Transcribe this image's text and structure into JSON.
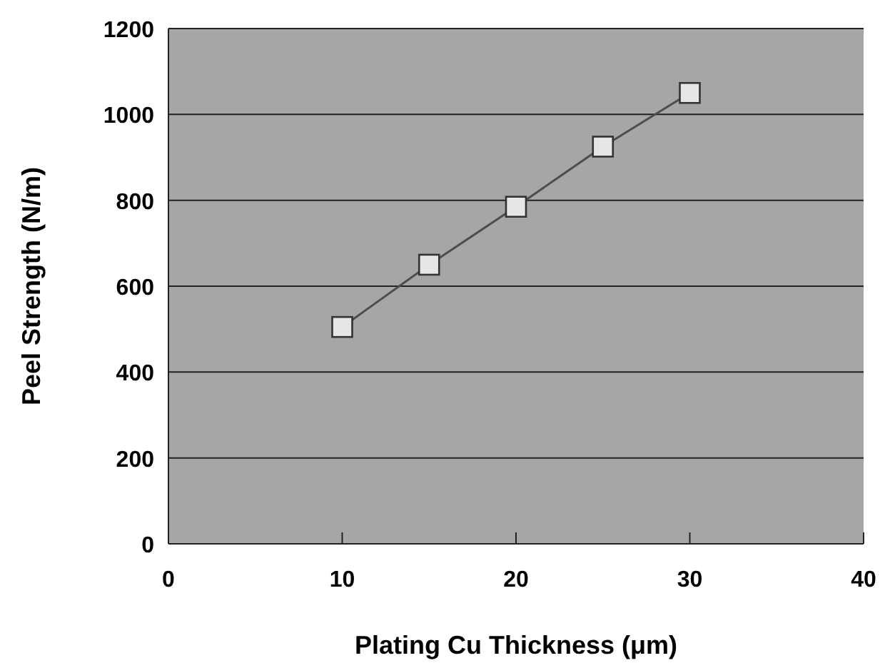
{
  "chart_data": {
    "type": "line",
    "xlabel": "Plating Cu Thickness (μm)",
    "ylabel": "Peel Strength (N/m)",
    "x": [
      10,
      15,
      20,
      25,
      30
    ],
    "series": [
      {
        "color": "#4d4d4d",
        "values": [
          505,
          650,
          785,
          925,
          1050
        ]
      }
    ],
    "xlim": [
      0,
      40
    ],
    "xticks": [
      0,
      10,
      20,
      30,
      40
    ],
    "ylim": [
      0,
      1200
    ],
    "yticks": [
      0,
      200,
      400,
      600,
      800,
      1000,
      1200
    ],
    "grid": "y",
    "marker": "square",
    "line_style": "solid"
  }
}
